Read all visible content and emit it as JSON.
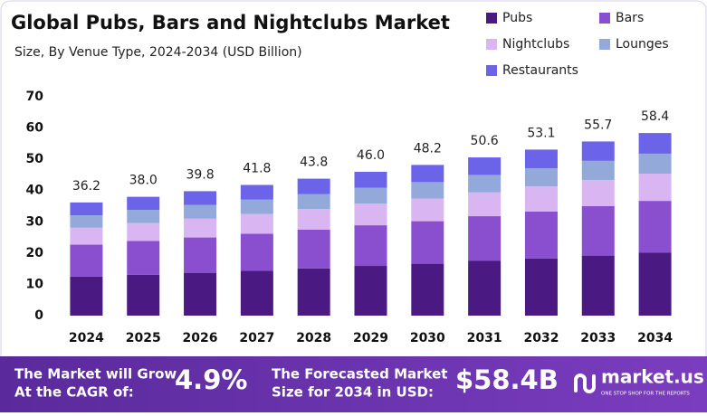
{
  "chart_data": {
    "type": "stacked-bar",
    "title": "Global Pubs, Bars and Nightclubs Market",
    "subtitle": "Size, By Venue Type, 2024-2034 (USD Billion)",
    "categories": [
      "2024",
      "2025",
      "2026",
      "2027",
      "2028",
      "2029",
      "2030",
      "2031",
      "2032",
      "2033",
      "2034"
    ],
    "series": [
      {
        "name": "Pubs",
        "color": "#4a1a82",
        "values": [
          12.5,
          13.1,
          13.7,
          14.4,
          15.1,
          15.9,
          16.6,
          17.5,
          18.3,
          19.2,
          20.2
        ]
      },
      {
        "name": "Bars",
        "color": "#8a4fcf",
        "values": [
          10.2,
          10.8,
          11.3,
          11.8,
          12.4,
          13.0,
          13.6,
          14.3,
          15.0,
          15.8,
          16.5
        ]
      },
      {
        "name": "Nightclubs",
        "color": "#d9b6f2",
        "values": [
          5.4,
          5.7,
          6.0,
          6.3,
          6.6,
          6.9,
          7.2,
          7.6,
          8.0,
          8.4,
          8.7
        ]
      },
      {
        "name": "Lounges",
        "color": "#92a9d9",
        "values": [
          4.0,
          4.2,
          4.4,
          4.6,
          4.8,
          5.1,
          5.3,
          5.6,
          5.8,
          6.1,
          6.4
        ]
      },
      {
        "name": "Restaurants",
        "color": "#6b63e8",
        "values": [
          4.1,
          4.2,
          4.4,
          4.7,
          4.9,
          5.1,
          5.5,
          5.6,
          6.0,
          6.2,
          6.6
        ]
      }
    ],
    "totals": [
      36.2,
      38.0,
      39.8,
      41.8,
      43.8,
      46.0,
      48.2,
      50.6,
      53.1,
      55.7,
      58.4
    ],
    "value_labels": [
      "36.2",
      "38.0",
      "39.8",
      "41.8",
      "43.8",
      "46.0",
      "48.2",
      "50.6",
      "53.1",
      "55.7",
      "58.4"
    ],
    "ylim": [
      0,
      70
    ],
    "yticks": [
      0,
      10,
      20,
      30,
      40,
      50,
      60,
      70
    ],
    "grid": false,
    "legend": "top-right"
  },
  "footer": {
    "cagr_text": [
      "The Market will Grow",
      "At the CAGR of:"
    ],
    "cagr": "4.9%",
    "forecast_text": [
      "The Forecasted Market",
      "Size for 2034 in USD:"
    ],
    "forecast": "$58.4B",
    "brand": "market.us",
    "tagline": "ONE STOP SHOP FOR THE REPORTS"
  }
}
